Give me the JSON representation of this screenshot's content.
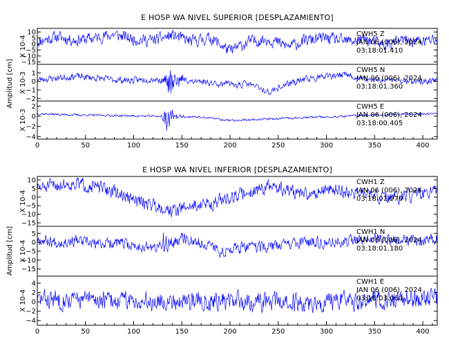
{
  "chart_data": [
    {
      "type": "line",
      "title": "E HOSP WA NIVEL SUPERIOR [DESPLAZAMIENTO]",
      "ylabel": "Amplitud [cm]",
      "xlim": [
        0,
        415
      ],
      "xticks": [
        0,
        50,
        100,
        150,
        200,
        250,
        300,
        350,
        400
      ],
      "line_color": "#0000ff",
      "panels": [
        {
          "y_multiplier": "X 10-4",
          "ylim": [
            -17,
            13
          ],
          "yticks": [
            10,
            5,
            0,
            -5,
            -10,
            -15
          ],
          "station": "CWH5",
          "component": "Z",
          "date": "JAN 06 (006), 2024",
          "time": "03:18:01.410",
          "series": {
            "x": [
              0,
              20,
              40,
              60,
              80,
              100,
              120,
              140,
              160,
              180,
              200,
              220,
              240,
              260,
              280,
              300,
              320,
              340,
              360,
              380,
              400,
              415
            ],
            "y": [
              2,
              6,
              3,
              5,
              8,
              4,
              3,
              7,
              2,
              5,
              -6,
              2,
              4,
              -2,
              3,
              5,
              2,
              4,
              -1,
              3,
              2,
              4
            ],
            "noise": 4.5,
            "seed": 11
          }
        },
        {
          "y_multiplier": "X 10-3",
          "ylim": [
            -2.3,
            2
          ],
          "yticks": [
            1,
            0,
            -1,
            -2
          ],
          "station": "CWH5",
          "component": "N",
          "date": "JAN 06 (006), 2024",
          "time": "03:18:01.360",
          "series": {
            "x": [
              0,
              20,
              40,
              60,
              80,
              100,
              120,
              135,
              150,
              170,
              200,
              220,
              240,
              260,
              280,
              300,
              320,
              340,
              360,
              380,
              400,
              415
            ],
            "y": [
              0.2,
              0.4,
              0.6,
              0.4,
              0.2,
              0.1,
              0.3,
              0.0,
              0.2,
              0.0,
              -0.4,
              -0.3,
              -1.3,
              -0.3,
              0.3,
              0.5,
              0.8,
              0.2,
              0.2,
              0.1,
              0.0,
              0.1
            ],
            "noise": 0.35,
            "seed": 23,
            "burst": {
              "center": 138,
              "width": 18,
              "amplitude": 1.7
            }
          }
        },
        {
          "y_multiplier": "X 10-3",
          "ylim": [
            -4.5,
            3
          ],
          "yticks": [
            2,
            0,
            -2,
            -4
          ],
          "station": "CWH5",
          "component": "E",
          "date": "JAN 06 (006), 2024",
          "time": "03:18:00.405",
          "series": {
            "x": [
              0,
              30,
              60,
              90,
              120,
              140,
              170,
              200,
              230,
              260,
              290,
              320,
              350,
              380,
              415
            ],
            "y": [
              0.5,
              0.3,
              0.2,
              0.1,
              0.0,
              0.0,
              -0.2,
              -0.8,
              -0.6,
              -0.4,
              -0.2,
              0.0,
              0.3,
              0.4,
              0.5
            ],
            "noise": 0.2,
            "seed": 37,
            "burst": {
              "center": 134,
              "width": 14,
              "amplitude": 3.2
            }
          }
        }
      ]
    },
    {
      "type": "line",
      "title": "E HOSP WA NIVEL INFERIOR [DESPLAZAMIENTO]",
      "ylabel": "Amplitud [cm]",
      "xlim": [
        0,
        415
      ],
      "xticks": [
        0,
        50,
        100,
        150,
        200,
        250,
        300,
        350,
        400
      ],
      "line_color": "#0000ff",
      "panels": [
        {
          "y_multiplier": "X 10-4",
          "ylim": [
            -17,
            12
          ],
          "yticks": [
            10,
            5,
            0,
            -5,
            -10,
            -15
          ],
          "station": "CWH1",
          "component": "Z",
          "date": "JAN 06 (006), 2024",
          "time": "03:18:01.570",
          "series": {
            "x": [
              0,
              20,
              40,
              60,
              80,
              100,
              120,
              140,
              160,
              180,
              200,
              220,
              240,
              260,
              280,
              300,
              320,
              340,
              360,
              380,
              400,
              415
            ],
            "y": [
              5,
              7,
              8,
              6,
              3,
              -2,
              -4,
              -8,
              -5,
              -4,
              0,
              3,
              6,
              4,
              1,
              5,
              3,
              2,
              -1,
              0,
              2,
              3
            ],
            "noise": 3.5,
            "seed": 51
          }
        },
        {
          "y_multiplier": "X 10-4",
          "ylim": [
            -19,
            9
          ],
          "yticks": [
            5,
            0,
            -5,
            -10,
            -15
          ],
          "station": "CWH1",
          "component": "N",
          "date": "JAN 06 (006), 2024",
          "time": "03:18:01.180",
          "series": {
            "x": [
              0,
              20,
              40,
              60,
              80,
              100,
              120,
              135,
              150,
              170,
              190,
              210,
              230,
              260,
              290,
              320,
              350,
              380,
              415
            ],
            "y": [
              2,
              0,
              1,
              -1,
              0,
              -2,
              -3,
              -2,
              3,
              0,
              -5,
              -3,
              -3,
              -1,
              0,
              1,
              2,
              1,
              2
            ],
            "noise": 2.8,
            "seed": 67,
            "burst": {
              "center": 132,
              "width": 10,
              "amplitude": 9
            }
          }
        },
        {
          "y_multiplier": "X 10-4",
          "ylim": [
            -5,
            5.5
          ],
          "yticks": [
            4,
            2,
            0,
            -2,
            -4
          ],
          "station": "CWH1",
          "component": "E",
          "date": "JAN 06 (006), 2024",
          "time": "03:18:03.060",
          "series": {
            "x": [
              0,
              40,
              80,
              120,
              160,
              200,
              240,
              280,
              320,
              360,
              415
            ],
            "y": [
              0.5,
              0.5,
              0.3,
              0.2,
              0.3,
              0.2,
              0.0,
              -0.3,
              0.0,
              0.5,
              0.8
            ],
            "noise": 1.8,
            "seed": 83
          }
        }
      ]
    }
  ]
}
